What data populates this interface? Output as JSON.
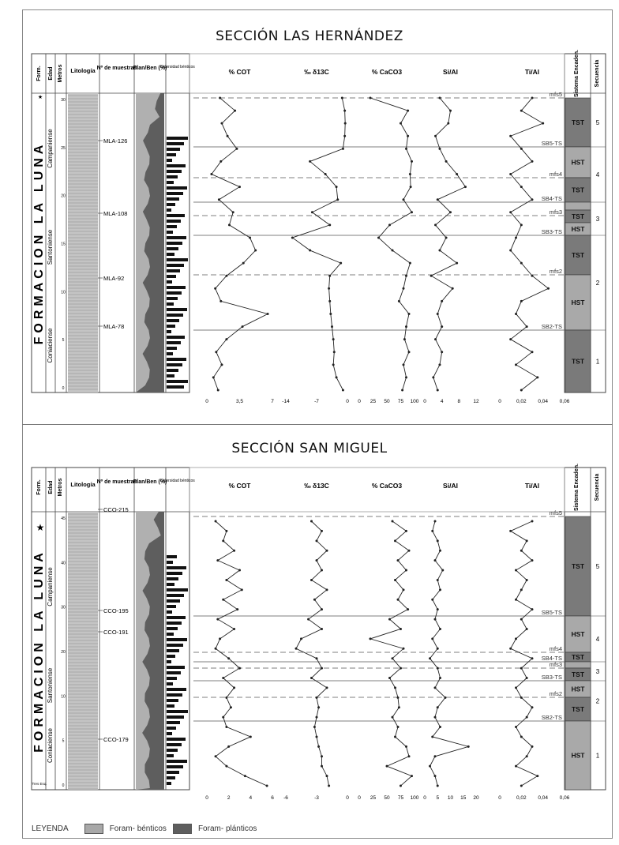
{
  "sections": [
    {
      "title": "SECCIÓN LAS HERNÁNDEZ",
      "formation": "FORMACION LA LUNA",
      "ages": [
        "Campaniense",
        "Santoniense",
        "Coniaciense"
      ],
      "samples": [
        "MLA-126",
        "MLA-108",
        "MLA-92",
        "MLA-78"
      ],
      "depth_ticks": [
        "30",
        "25",
        "20",
        "15",
        "10",
        "5",
        "0"
      ],
      "surfaces": [
        {
          "label": "mfs5",
          "kind": "mfs"
        },
        {
          "label": "SB5-TS",
          "kind": "sb"
        },
        {
          "label": "mfs4",
          "kind": "mfs"
        },
        {
          "label": "SB4-TS",
          "kind": "sb"
        },
        {
          "label": "mfs3",
          "kind": "mfs"
        },
        {
          "label": "SB3-TS",
          "kind": "sb"
        },
        {
          "label": "mfs2",
          "kind": "mfs"
        },
        {
          "label": "SB2-TS",
          "kind": "sb"
        }
      ],
      "systems_tracts": [
        "TST",
        "HST",
        "TST",
        "HST",
        "TST",
        "HST",
        "TST",
        "HST"
      ],
      "sequences": [
        "5",
        "4",
        "3",
        "2",
        "1"
      ],
      "curves": [
        {
          "title": "% COT",
          "ticks": [
            "0",
            "3,5",
            "7"
          ],
          "values": [
            1.4,
            3.0,
            1.6,
            2.2,
            3.2,
            1.5,
            0.5,
            3.5,
            1.3,
            2.8,
            2.4,
            4.6,
            5.2,
            3.9,
            2.1,
            0.9,
            1.5,
            6.5,
            3.8,
            2.1,
            1.0,
            1.6,
            0.7,
            1.2
          ],
          "min": 0,
          "max": 7
        },
        {
          "title": "‰ δ13C",
          "ticks": [
            "-14",
            "-7",
            "0"
          ],
          "values": [
            -1.2,
            -0.6,
            -0.5,
            -0.6,
            -1.0,
            -8.5,
            -5.0,
            -2.5,
            -2.2,
            -8.0,
            -4.0,
            -12.5,
            -8.5,
            -1.5,
            -4.0,
            -4.2,
            -4.0,
            -3.8,
            -3.5,
            -3.2,
            -3.0,
            -3.2,
            -2.5,
            -1.0
          ],
          "min": -14,
          "max": 0
        },
        {
          "title": "% CaCO3",
          "ticks": [
            "0",
            "25",
            "50",
            "75",
            "100"
          ],
          "values": [
            20,
            88,
            75,
            88,
            85,
            95,
            92,
            93,
            80,
            95,
            55,
            35,
            60,
            92,
            85,
            80,
            72,
            90,
            85,
            82,
            90,
            80,
            85,
            78
          ],
          "min": 0,
          "max": 100
        },
        {
          "title": "Si/Al",
          "ticks": [
            "0",
            "4",
            "8",
            "12"
          ],
          "values": [
            3.5,
            6.0,
            5.5,
            2.5,
            3.5,
            5.0,
            7.5,
            9.5,
            3.0,
            6.0,
            2.5,
            5.0,
            3.5,
            7.5,
            1.5,
            6.5,
            4.0,
            3.0,
            4.0,
            2.5,
            4.0,
            3.5,
            2.0,
            3.0
          ],
          "min": 0,
          "max": 12
        },
        {
          "title": "Ti/Al",
          "ticks": [
            "0",
            "0,02",
            "0,04",
            "0,06"
          ],
          "values": [
            0.03,
            0.02,
            0.04,
            0.01,
            0.02,
            0.03,
            0.01,
            0.02,
            0.03,
            0.01,
            0.02,
            0.015,
            0.01,
            0.02,
            0.03,
            0.045,
            0.02,
            0.015,
            0.025,
            0.01,
            0.03,
            0.015,
            0.035,
            0.02
          ],
          "min": 0,
          "max": 0.06
        }
      ]
    },
    {
      "title": "SECCIÓN SAN MIGUEL",
      "formation": "FORMACION LA LUNA",
      "ages": [
        "Campaniense",
        "Santoniense",
        "Coniaciense"
      ],
      "samples": [
        "CCO-215",
        "CCO-195",
        "CCO-191",
        "CCO-179"
      ],
      "depth_ticks": [
        "45",
        "40",
        "30",
        "20",
        "10",
        "5",
        "0"
      ],
      "surfaces": [
        {
          "label": "mfs5",
          "kind": "mfs"
        },
        {
          "label": "SB5-TS",
          "kind": "sb"
        },
        {
          "label": "mfs4",
          "kind": "mfs"
        },
        {
          "label": "SB4-TS",
          "kind": "sb"
        },
        {
          "label": "mfs3",
          "kind": "mfs"
        },
        {
          "label": "SB3-TS",
          "kind": "sb"
        },
        {
          "label": "mfs2",
          "kind": "mfs"
        },
        {
          "label": "SB2-TS",
          "kind": "sb"
        }
      ],
      "systems_tracts": [
        "TST",
        "HST",
        "TST",
        "HST",
        "TST",
        "HST",
        "TST",
        "HST"
      ],
      "sequences": [
        "5",
        "4",
        "3",
        "2",
        "1"
      ],
      "curves": [
        {
          "title": "% COT",
          "ticks": [
            "0",
            "2",
            "4",
            "6"
          ],
          "values": [
            0.8,
            1.8,
            1.5,
            2.5,
            1.0,
            3.0,
            1.8,
            3.2,
            1.5,
            2.8,
            1.0,
            2.5,
            1.2,
            0.8,
            2.0,
            3.0,
            1.5,
            2.5,
            1.8,
            2.2,
            1.5,
            1.8,
            4.0,
            2.0,
            0.8,
            1.8,
            3.5,
            5.5
          ],
          "min": 0,
          "max": 6
        },
        {
          "title": "‰ δ13C",
          "ticks": [
            "-6",
            "-3",
            "0"
          ],
          "values": [
            -3.5,
            -2.5,
            -3.0,
            -2.0,
            -3.0,
            -2.5,
            -3.5,
            -2.0,
            -3.2,
            -2.5,
            -3.8,
            -2.5,
            -4.5,
            -5.0,
            -3.0,
            -2.5,
            -3.5,
            -2.0,
            -3.0,
            -2.8,
            -3.0,
            -3.2,
            -3.0,
            -2.8,
            -2.5,
            -2.5,
            -2.0,
            -1.8
          ],
          "min": -6,
          "max": 0
        },
        {
          "title": "% CaCO3",
          "ticks": [
            "0",
            "25",
            "50",
            "75",
            "100"
          ],
          "values": [
            60,
            85,
            65,
            90,
            70,
            85,
            65,
            80,
            70,
            88,
            55,
            75,
            20,
            80,
            60,
            75,
            55,
            65,
            70,
            72,
            60,
            70,
            65,
            85,
            90,
            50,
            95,
            75
          ],
          "min": 0,
          "max": 100
        },
        {
          "title": "Si/Al",
          "ticks": [
            "0",
            "5",
            "10",
            "15",
            "20"
          ],
          "values": [
            4,
            3,
            5,
            6,
            4,
            7,
            5,
            6,
            3,
            5,
            4,
            6,
            3,
            5,
            2,
            5,
            6,
            4,
            8,
            5,
            4,
            6,
            3,
            17,
            4,
            2,
            4,
            5
          ],
          "min": 0,
          "max": 20
        },
        {
          "title": "Ti/Al",
          "ticks": [
            "0",
            "0,02",
            "0,04",
            "0,06"
          ],
          "values": [
            0.03,
            0.01,
            0.025,
            0.02,
            0.03,
            0.015,
            0.025,
            0.02,
            0.015,
            0.03,
            0.02,
            0.025,
            0.015,
            0.01,
            0.03,
            0.02,
            0.025,
            0.015,
            0.02,
            0.03,
            0.025,
            0.015,
            0.02,
            0.03,
            0.025,
            0.015,
            0.035,
            0.02
          ],
          "min": 0,
          "max": 0.06
        }
      ]
    }
  ],
  "legend": {
    "title": "LEYENDA",
    "items": [
      {
        "label": "Foram- bénticos",
        "color": "#a8a8a8"
      },
      {
        "label": "Foram- plánticos",
        "color": "#5e5e5e"
      }
    ]
  },
  "column_headers": {
    "form": "Form.",
    "edad": "Edad",
    "metros": "Metros",
    "litologia": "Litología",
    "muestras": "Nº de muestras",
    "planben": "Plan/Ben (%)",
    "diversidad": "Diversidad bénticos",
    "sistema": "Sistema Encaden.",
    "secuencia": "Secuencia"
  },
  "bottom_unit": "Tres Esq."
}
